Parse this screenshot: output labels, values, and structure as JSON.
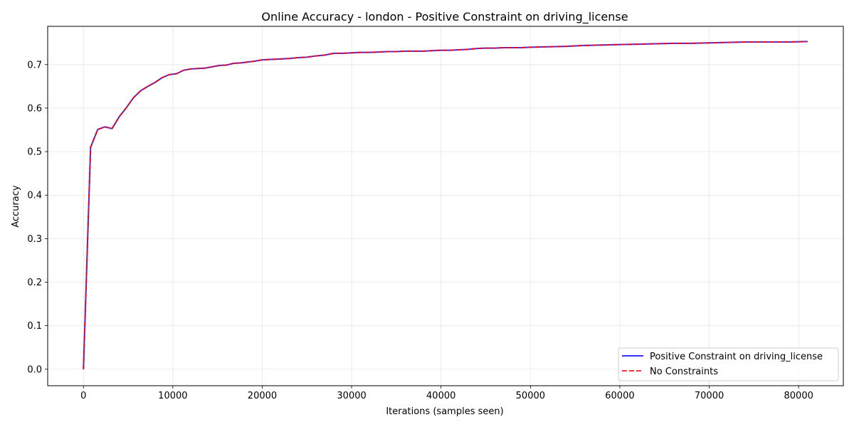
{
  "chart_data": {
    "type": "line",
    "title": "Online Accuracy - london - Positive Constraint on driving_license",
    "xlabel": "Iterations (samples seen)",
    "ylabel": "Accuracy",
    "xlim": [
      -4000,
      85000
    ],
    "ylim": [
      -0.038,
      0.788
    ],
    "xticks": [
      0,
      10000,
      20000,
      30000,
      40000,
      50000,
      60000,
      70000,
      80000
    ],
    "xtick_labels": [
      "0",
      "10000",
      "20000",
      "30000",
      "40000",
      "50000",
      "60000",
      "70000",
      "80000"
    ],
    "yticks": [
      0.0,
      0.1,
      0.2,
      0.3,
      0.4,
      0.5,
      0.6,
      0.7
    ],
    "ytick_labels": [
      "0.0",
      "0.1",
      "0.2",
      "0.3",
      "0.4",
      "0.5",
      "0.6",
      "0.7"
    ],
    "grid": true,
    "legend_position": "bottom-right",
    "x": [
      0,
      800,
      1600,
      2400,
      3200,
      4000,
      4800,
      5600,
      6400,
      7200,
      8000,
      8800,
      9600,
      10400,
      11200,
      12000,
      12800,
      13600,
      14400,
      15200,
      16000,
      16800,
      17600,
      18400,
      19200,
      20000,
      21000,
      22000,
      23000,
      24000,
      25000,
      26000,
      27000,
      28000,
      29000,
      30000,
      31000,
      32000,
      33000,
      34000,
      35000,
      36000,
      37000,
      38000,
      39000,
      40000,
      41000,
      42000,
      43000,
      44000,
      45000,
      46000,
      47000,
      48000,
      49000,
      50000,
      52000,
      54000,
      56000,
      58000,
      60000,
      62000,
      64000,
      66000,
      68000,
      70000,
      72000,
      74000,
      76000,
      78000,
      79000,
      81000
    ],
    "series": [
      {
        "name": "Positive Constraint on driving_license",
        "color": "#0000ff",
        "style": "solid",
        "values": [
          0.0,
          0.51,
          0.551,
          0.557,
          0.553,
          0.58,
          0.601,
          0.624,
          0.64,
          0.65,
          0.659,
          0.67,
          0.677,
          0.679,
          0.687,
          0.69,
          0.691,
          0.692,
          0.695,
          0.698,
          0.699,
          0.703,
          0.704,
          0.706,
          0.708,
          0.711,
          0.712,
          0.713,
          0.714,
          0.716,
          0.717,
          0.72,
          0.722,
          0.726,
          0.726,
          0.727,
          0.728,
          0.728,
          0.729,
          0.73,
          0.73,
          0.731,
          0.731,
          0.731,
          0.732,
          0.733,
          0.733,
          0.734,
          0.735,
          0.737,
          0.738,
          0.738,
          0.739,
          0.739,
          0.739,
          0.74,
          0.741,
          0.742,
          0.744,
          0.745,
          0.746,
          0.747,
          0.748,
          0.749,
          0.749,
          0.75,
          0.751,
          0.752,
          0.752,
          0.752,
          0.752,
          0.753
        ]
      },
      {
        "name": "No Constraints",
        "color": "#ff0000",
        "style": "dashed",
        "values": [
          0.0,
          0.51,
          0.551,
          0.557,
          0.553,
          0.58,
          0.601,
          0.624,
          0.64,
          0.65,
          0.659,
          0.67,
          0.677,
          0.679,
          0.687,
          0.69,
          0.691,
          0.692,
          0.695,
          0.698,
          0.699,
          0.703,
          0.704,
          0.706,
          0.708,
          0.711,
          0.712,
          0.713,
          0.714,
          0.716,
          0.717,
          0.72,
          0.722,
          0.726,
          0.726,
          0.727,
          0.728,
          0.728,
          0.729,
          0.73,
          0.73,
          0.731,
          0.731,
          0.731,
          0.732,
          0.733,
          0.733,
          0.734,
          0.735,
          0.737,
          0.738,
          0.738,
          0.739,
          0.739,
          0.739,
          0.74,
          0.741,
          0.742,
          0.744,
          0.745,
          0.746,
          0.747,
          0.748,
          0.749,
          0.749,
          0.75,
          0.751,
          0.752,
          0.752,
          0.752,
          0.752,
          0.753
        ]
      }
    ]
  }
}
